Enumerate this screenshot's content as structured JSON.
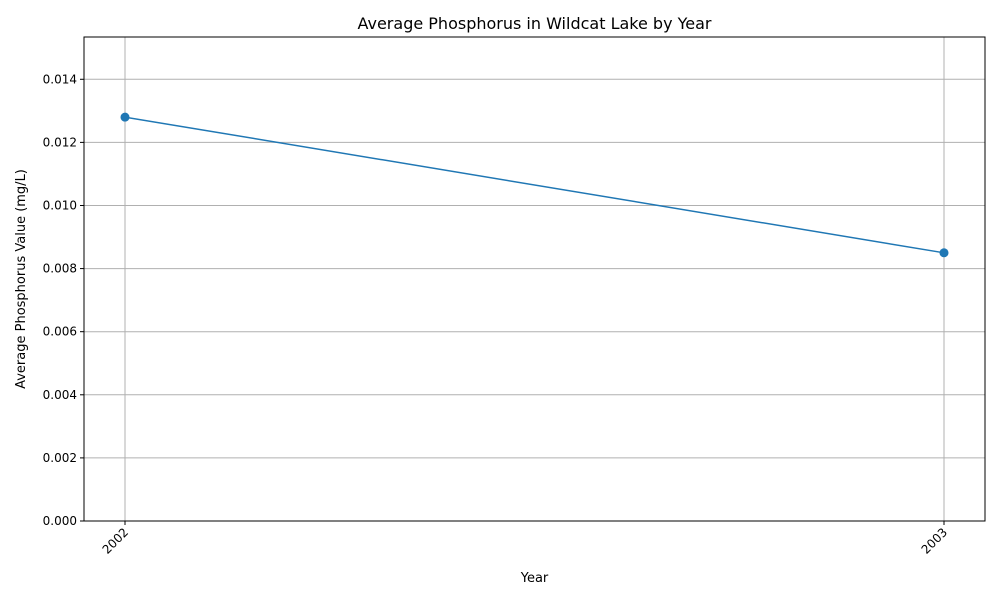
{
  "chart_data": {
    "type": "line",
    "title": "Average Phosphorus in Wildcat Lake by Year",
    "xlabel": "Year",
    "ylabel": "Average Phosphorus Value (mg/L)",
    "categories": [
      "2002",
      "2003"
    ],
    "series": [
      {
        "values": [
          0.0128,
          0.0085
        ],
        "color": "#1f77b4",
        "marker": "circle"
      }
    ],
    "ylim": [
      0,
      0.01534
    ],
    "yticks": [
      0.0,
      0.002,
      0.004,
      0.006,
      0.008,
      0.01,
      0.012,
      0.014
    ],
    "ytick_labels": [
      "0.000",
      "0.002",
      "0.004",
      "0.006",
      "0.008",
      "0.010",
      "0.012",
      "0.014"
    ],
    "grid": true,
    "legend": "none"
  }
}
